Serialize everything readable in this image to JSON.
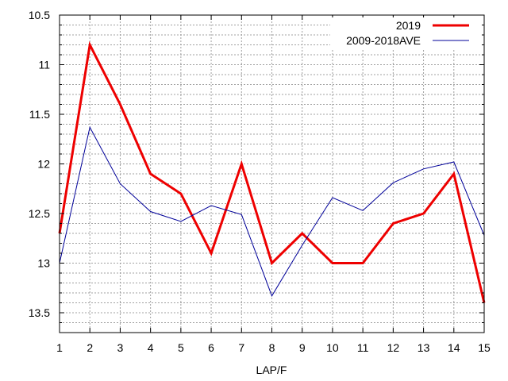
{
  "chart_data": {
    "type": "line",
    "title": "",
    "xlabel": "LAP/F",
    "ylabel": "",
    "x": [
      1,
      2,
      3,
      4,
      5,
      6,
      7,
      8,
      9,
      10,
      11,
      12,
      13,
      14,
      15
    ],
    "xlim": [
      1,
      15
    ],
    "ylim": [
      10.5,
      13.7
    ],
    "y_inverted": true,
    "y_ticks": [
      10.5,
      11,
      11.5,
      12,
      12.5,
      13,
      13.5
    ],
    "y_tick_labels": [
      "10.5",
      "11",
      "11.5",
      "12",
      "12.5",
      "13",
      "13.5"
    ],
    "x_ticks": [
      1,
      2,
      3,
      4,
      5,
      6,
      7,
      8,
      9,
      10,
      11,
      12,
      13,
      14,
      15
    ],
    "x_tick_labels": [
      "1",
      "2",
      "3",
      "4",
      "5",
      "6",
      "7",
      "8",
      "9",
      "10",
      "11",
      "12",
      "13",
      "14",
      "15"
    ],
    "y_minor_step": 0.1,
    "grid": true,
    "legend_position": "top-right",
    "series": [
      {
        "name": "2019",
        "color": "#ee0000",
        "values": [
          12.7,
          10.8,
          11.4,
          12.1,
          12.3,
          12.9,
          12.0,
          13.0,
          12.7,
          13.0,
          13.0,
          12.6,
          12.5,
          12.1,
          13.4
        ]
      },
      {
        "name": "2009-2018AVE",
        "color": "#000099",
        "values": [
          13.0,
          11.63,
          12.2,
          12.48,
          12.58,
          12.42,
          12.51,
          13.33,
          12.82,
          12.34,
          12.47,
          12.19,
          12.05,
          11.98,
          12.72
        ]
      }
    ]
  }
}
